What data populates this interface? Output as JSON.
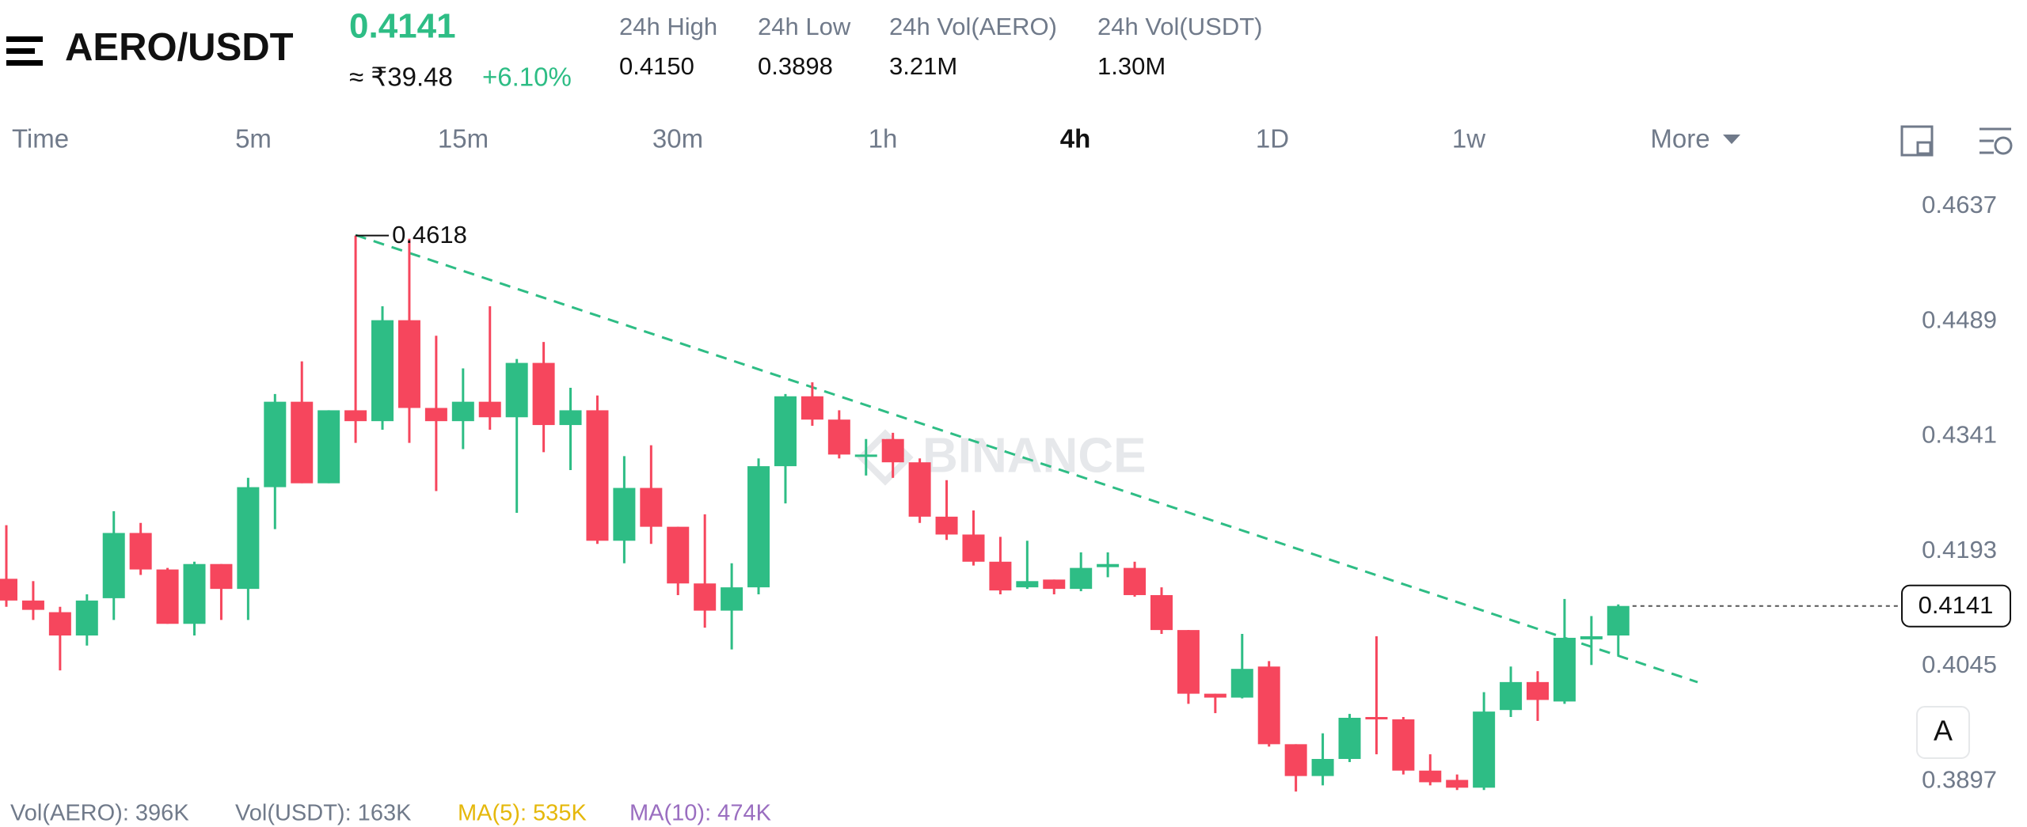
{
  "header": {
    "pair": "AERO/USDT",
    "price": "0.4141",
    "price_local": "≈ ₹39.48",
    "change": "+6.10%",
    "stats": [
      {
        "label": "24h High",
        "value": "0.4150"
      },
      {
        "label": "24h Low",
        "value": "0.3898"
      },
      {
        "label": "24h Vol(AERO)",
        "value": "3.21M"
      },
      {
        "label": "24h Vol(USDT)",
        "value": "1.30M"
      }
    ]
  },
  "tabs": [
    "Time",
    "5m",
    "15m",
    "30m",
    "1h",
    "4h",
    "1D",
    "1w",
    "More"
  ],
  "active_tab": 5,
  "chart_data": {
    "type": "candlestick",
    "up_color": "#2ebd85",
    "down_color": "#f6465d",
    "watermark": "BINANCE",
    "open": [
      0.4176,
      0.4148,
      0.4133,
      0.4103,
      0.4151,
      0.4235,
      0.4188,
      0.4118,
      0.4195,
      0.4163,
      0.4294,
      0.4404,
      0.4299,
      0.4393,
      0.4379,
      0.4509,
      0.4396,
      0.4379,
      0.4404,
      0.4384,
      0.4454,
      0.4374,
      0.4393,
      0.4225,
      0.4293,
      0.4243,
      0.417,
      0.4135,
      0.4165,
      0.4321,
      0.4411,
      0.4381,
      0.4334,
      0.4356,
      0.4326,
      0.4256,
      0.4233,
      0.4198,
      0.4165,
      0.4175,
      0.4163,
      0.4191,
      0.419,
      0.4155,
      0.411,
      0.4028,
      0.4023,
      0.4063,
      0.3963,
      0.3922,
      0.3944,
      0.3998,
      0.3995,
      0.3929,
      0.3917,
      0.3907,
      0.4007,
      0.4043,
      0.4018,
      0.4098,
      0.4103
    ],
    "high": [
      0.4245,
      0.4173,
      0.414,
      0.4156,
      0.4263,
      0.4248,
      0.419,
      0.4198,
      0.4195,
      0.4306,
      0.4414,
      0.4456,
      0.4393,
      0.4618,
      0.4527,
      0.4614,
      0.4489,
      0.4447,
      0.4527,
      0.4459,
      0.4481,
      0.4422,
      0.4412,
      0.4334,
      0.4348,
      0.4243,
      0.4259,
      0.4196,
      0.4331,
      0.4414,
      0.4429,
      0.4393,
      0.4356,
      0.4364,
      0.4331,
      0.4303,
      0.4264,
      0.423,
      0.4225,
      0.4175,
      0.421,
      0.421,
      0.4198,
      0.4165,
      0.411,
      0.4028,
      0.4105,
      0.407,
      0.3963,
      0.3977,
      0.4002,
      0.4102,
      0.3998,
      0.395,
      0.3924,
      0.403,
      0.4063,
      0.4057,
      0.415,
      0.4128,
      0.4143
    ],
    "low": [
      0.414,
      0.4123,
      0.4058,
      0.409,
      0.4123,
      0.4181,
      0.4118,
      0.4103,
      0.4123,
      0.4123,
      0.424,
      0.4299,
      0.4299,
      0.4351,
      0.4368,
      0.4351,
      0.4289,
      0.4343,
      0.4368,
      0.4261,
      0.4339,
      0.4316,
      0.4221,
      0.4196,
      0.4221,
      0.4155,
      0.4113,
      0.4085,
      0.4156,
      0.4273,
      0.4373,
      0.4331,
      0.4309,
      0.4306,
      0.4248,
      0.4226,
      0.4193,
      0.4156,
      0.4163,
      0.4156,
      0.416,
      0.4178,
      0.4153,
      0.4105,
      0.4015,
      0.4003,
      0.4022,
      0.396,
      0.3902,
      0.391,
      0.394,
      0.395,
      0.3924,
      0.391,
      0.3904,
      0.3904,
      0.3998,
      0.3993,
      0.4015,
      0.4065,
      0.4077
    ],
    "close": [
      0.4148,
      0.4136,
      0.4103,
      0.4148,
      0.4235,
      0.4188,
      0.4118,
      0.4195,
      0.4163,
      0.4294,
      0.4404,
      0.4299,
      0.4393,
      0.4379,
      0.4509,
      0.4396,
      0.4379,
      0.4404,
      0.4384,
      0.4454,
      0.4374,
      0.4393,
      0.4225,
      0.4293,
      0.4243,
      0.417,
      0.4135,
      0.4165,
      0.4321,
      0.4411,
      0.4381,
      0.4336,
      0.4336,
      0.4326,
      0.4256,
      0.4233,
      0.4198,
      0.4161,
      0.4173,
      0.4163,
      0.419,
      0.4195,
      0.4155,
      0.411,
      0.4028,
      0.4023,
      0.406,
      0.3963,
      0.3922,
      0.3944,
      0.3997,
      0.3995,
      0.3929,
      0.3914,
      0.3907,
      0.4005,
      0.4043,
      0.402,
      0.41,
      0.4102,
      0.4141
    ],
    "ylim": [
      0.389,
      0.469
    ],
    "yticks": [
      0.4637,
      0.4489,
      0.4341,
      0.4193,
      0.4045,
      0.3897
    ],
    "scale_button": "A",
    "indicators": [
      {
        "label": "Vol(AERO): 396K",
        "color": "#707a8a"
      },
      {
        "label": "Vol(USDT): 163K",
        "color": "#707a8a"
      },
      {
        "label": "MA(5): 535K",
        "color": "#e5b80b"
      },
      {
        "label": "MA(10): 474K",
        "color": "#9a6ec0"
      }
    ]
  }
}
